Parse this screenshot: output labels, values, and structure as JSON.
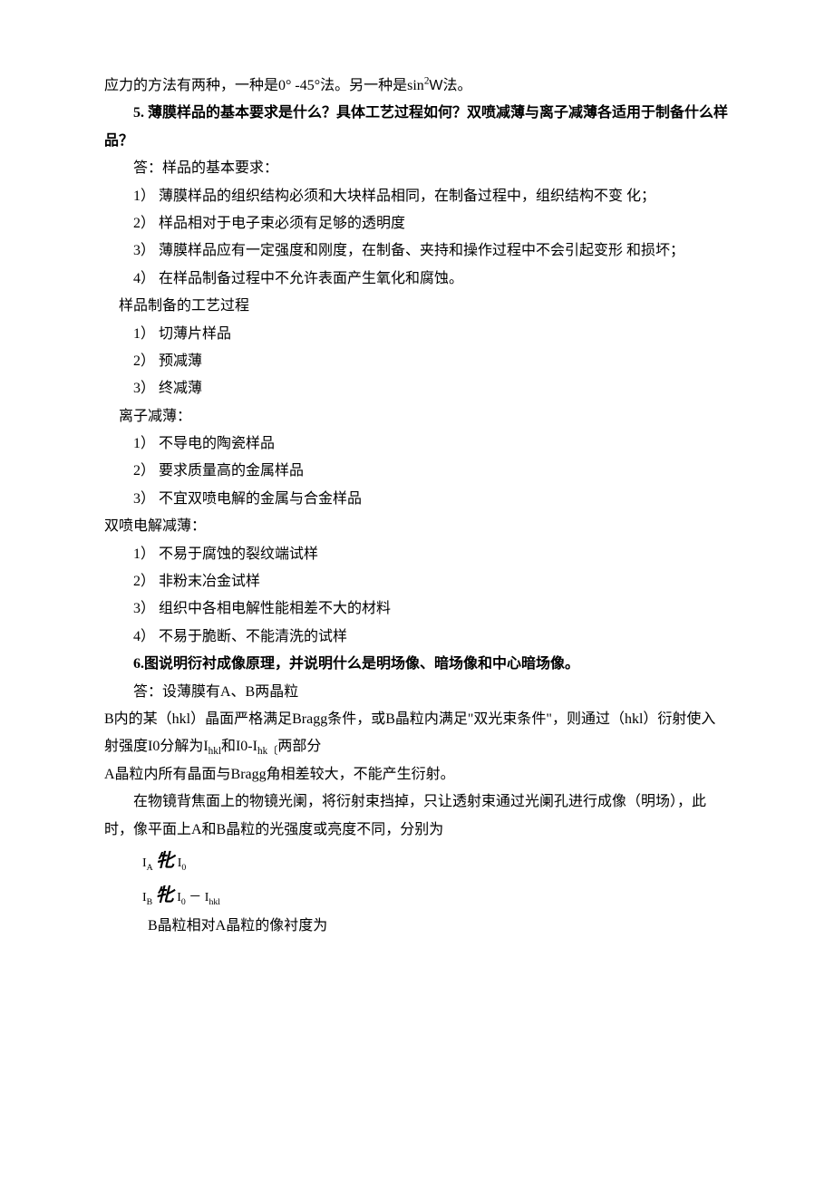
{
  "intro_line": "应力的方法有两种，一种是0° -45°法。另一种是sin",
  "intro_exp": "2",
  "intro_w": "W",
  "intro_end": "法。",
  "q5": "5. 薄膜样品的基本要求是什么？具体工艺过程如何？双喷减薄与离子减薄各适用于制备什么样品？",
  "a5_intro": "答：样品的基本要求：",
  "a5_1": "1）  薄膜样品的组织结构必须和大块样品相同，在制备过程中，组织结构不变 化；",
  "a5_2": "2）  样品相对于电子束必须有足够的透明度",
  "a5_3": "3）  薄膜样品应有一定强度和刚度，在制备、夹持和操作过程中不会引起变形 和损坏；",
  "a5_4": "4）  在样品制备过程中不允许表面产生氧化和腐蚀。",
  "prep_header": "样品制备的工艺过程",
  "prep_1": "1）  切薄片样品",
  "prep_2": "2）  预减薄",
  "prep_3": "3）  终减薄",
  "ion_header": "离子减薄：",
  "ion_1": "1）  不导电的陶瓷样品",
  "ion_2": "2）  要求质量高的金属样品",
  "ion_3": "3）  不宜双喷电解的金属与合金样品",
  "jet_header": "双喷电解减薄：",
  "jet_1": "1）  不易于腐蚀的裂纹端试样",
  "jet_2": "2）  非粉末冶金试样",
  "jet_3": "3）  组织中各相电解性能相差不大的材料",
  "jet_4": "4）  不易于脆断、不能清洗的试样",
  "q6": "6.图说明衍衬成像原理，并说明什么是明场像、暗场像和中心暗场像。",
  "a6_intro": "答：设薄膜有A、B两晶粒",
  "a6_p1_a": "B内的某（hkl）晶面严格满足Bragg条件，或B晶粒内满足\"双光束条件\"，则通过（hkl）衍射使入射强度I0分解为I",
  "a6_p1_sub1": "hkl",
  "a6_p1_b": "和I0-I",
  "a6_p1_sub2": "hk〔",
  "a6_p1_c": "两部分",
  "a6_p2": "A晶粒内所有晶面与Bragg角相差较大，不能产生衍射。",
  "a6_p3": "在物镜背焦面上的物镜光阑，将衍射束挡掉，只让透射束通过光阑孔进行成像（明场），此时，像平面上A和B晶粒的光强度或亮度不同，分别为",
  "f1_a": "I",
  "f1_sub": "A",
  "f1_sym": "牝",
  "f1_b": "I",
  "f1_sub2": "0",
  "f2_a": "I",
  "f2_sub": "B",
  "f2_sym": "牝",
  "f2_b": "I",
  "f2_sub2": "0",
  "f2_minus": "－",
  "f2_c": "I",
  "f2_sub3": "hkl",
  "final": "B晶粒相对A晶粒的像衬度为"
}
